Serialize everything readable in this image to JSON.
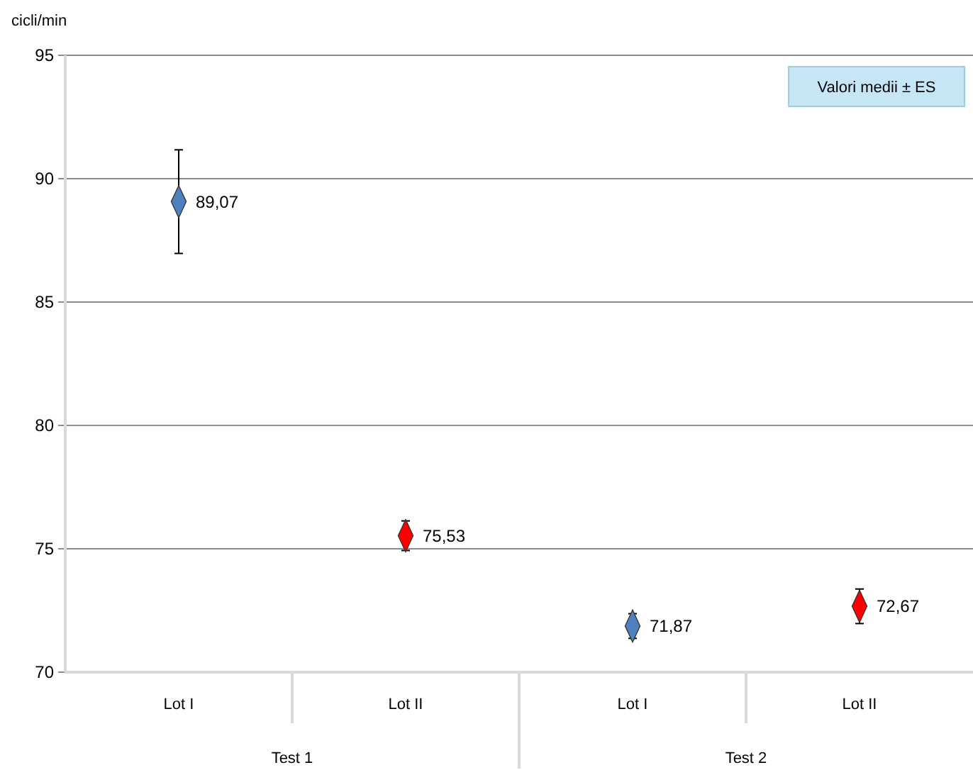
{
  "chart_data": {
    "type": "scatter",
    "ylabel": "cicli/min",
    "categories": [
      "Lot I",
      "Lot II",
      "Lot I",
      "Lot II"
    ],
    "values": [
      89.07,
      75.53,
      71.87,
      72.67
    ],
    "colors": [
      "#4f81bd",
      "#ff0000",
      "#4f81bd",
      "#ff0000"
    ],
    "errors": [
      2.1,
      0.6,
      0.5,
      0.7
    ],
    "value_labels": [
      "89,07",
      "75,53",
      "71,87",
      "72,67"
    ],
    "ylim": [
      70,
      95
    ],
    "yticks": [
      70,
      75,
      80,
      85,
      90,
      95
    ],
    "grid": "y",
    "marker": "diamond",
    "annotations": [
      "Test 1",
      "Test 2",
      "Valori medii ± ES"
    ]
  }
}
